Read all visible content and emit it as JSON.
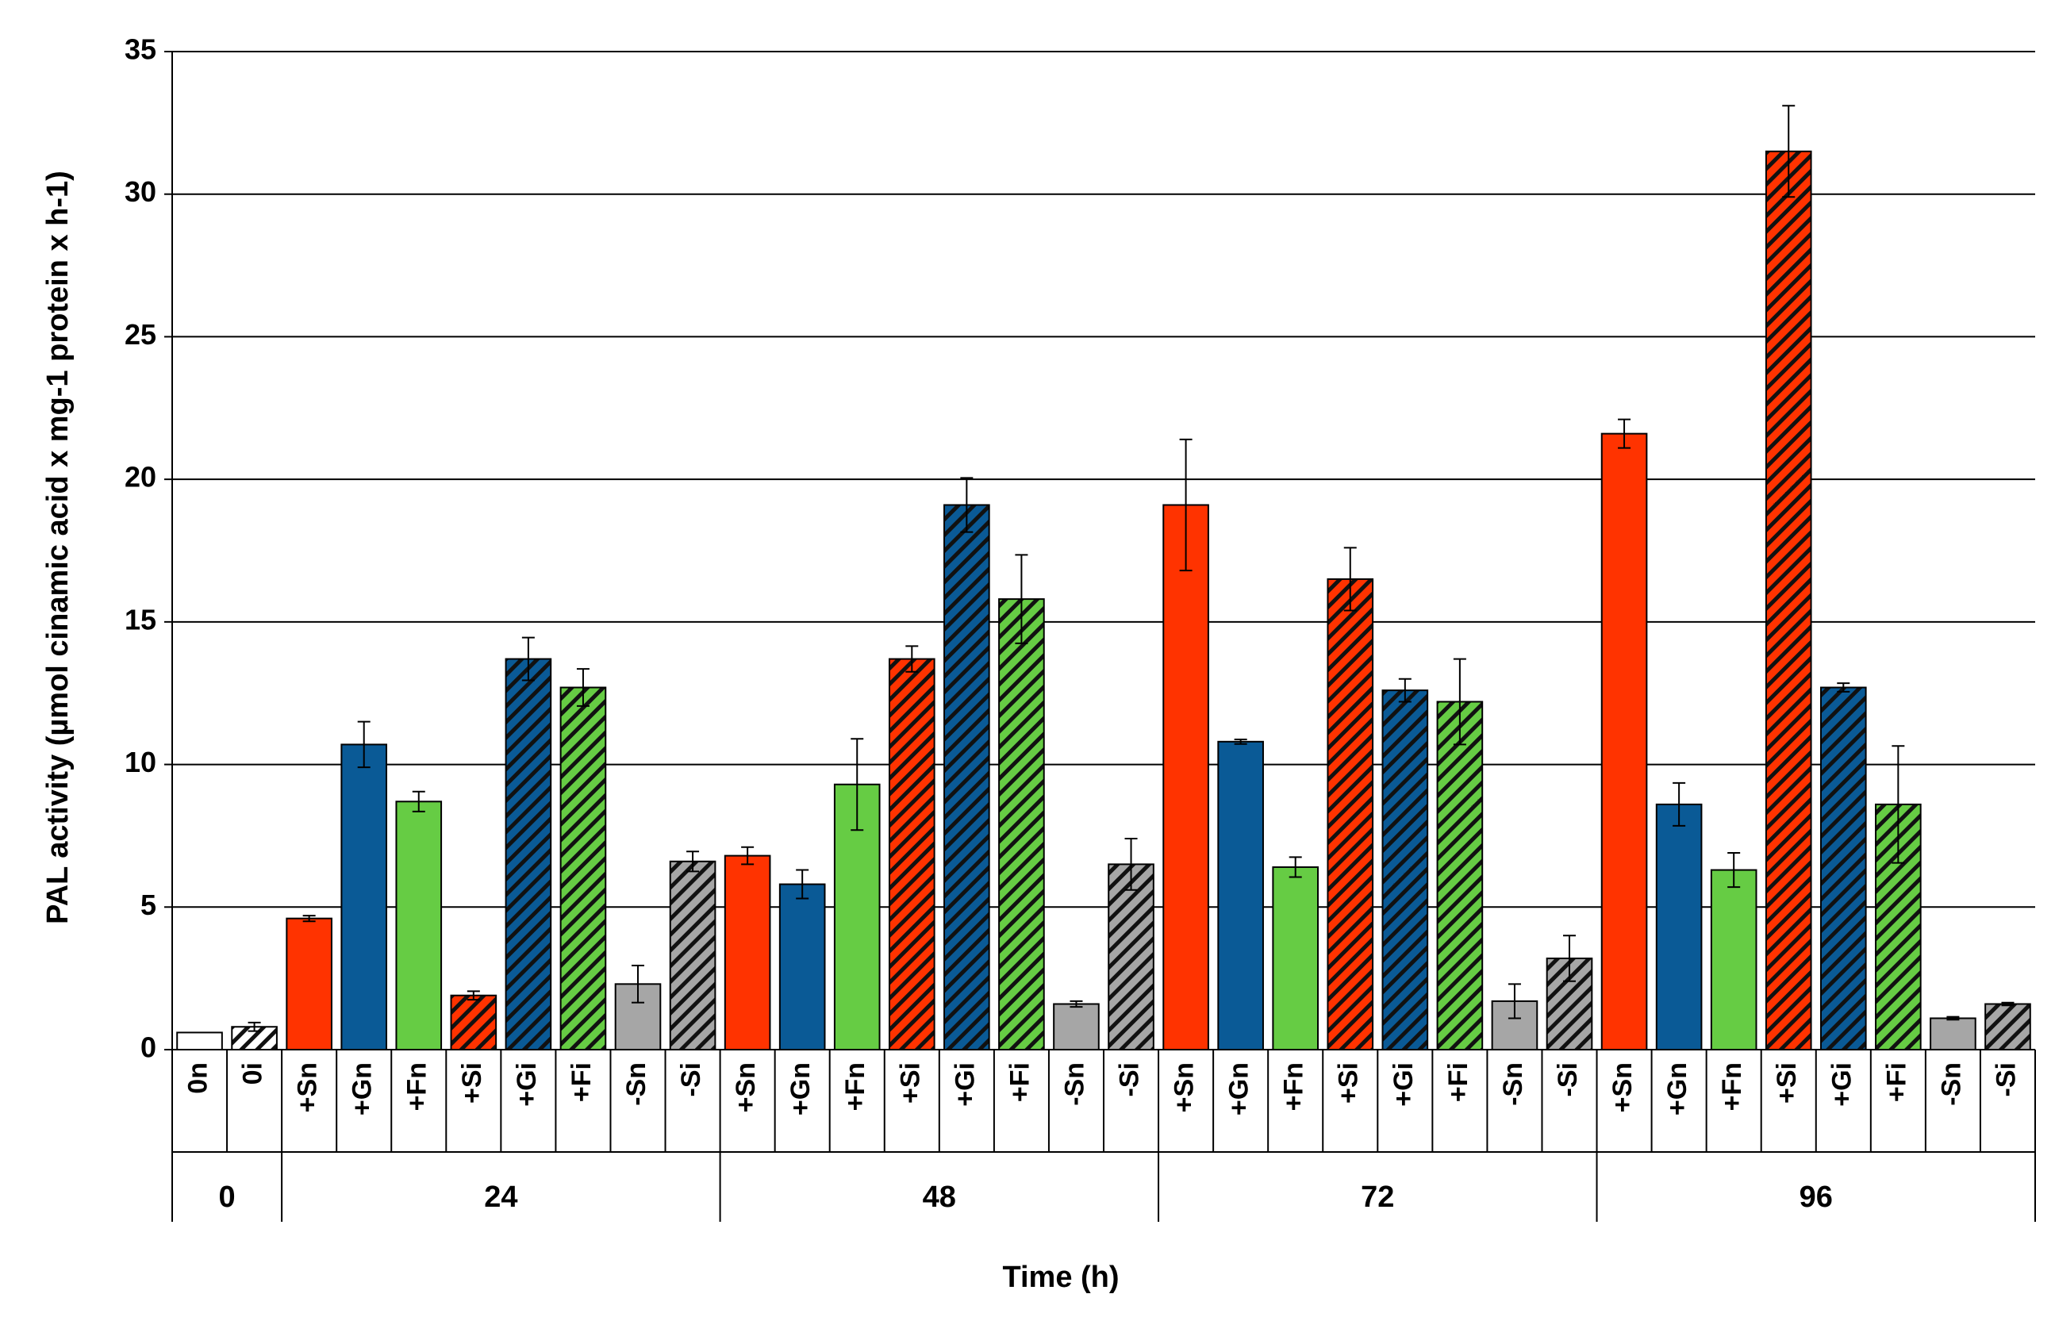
{
  "chart_data": {
    "type": "bar",
    "y_label": "PAL activity (µmol cinamic acid x mg-1 protein x h-1)",
    "x_label": "Time (h)",
    "ylim": [
      0,
      35
    ],
    "yticks": [
      0,
      5,
      10,
      15,
      20,
      25,
      30,
      35
    ],
    "grid": true,
    "groups": [
      {
        "name": "0",
        "categories": [
          "0n",
          "0i"
        ],
        "values": [
          0.6,
          0.8
        ],
        "errors": [
          0,
          0.15
        ],
        "colors": [
          "#ffffff",
          "#ffffff"
        ],
        "patterns": [
          "solid",
          "hatched"
        ]
      },
      {
        "name": "24",
        "categories": [
          "+Sn",
          "+Gn",
          "+Fn",
          "+Si",
          "+Gi",
          "+Fi",
          "-Sn",
          "-Si"
        ],
        "values": [
          4.6,
          10.7,
          8.7,
          1.9,
          13.7,
          12.7,
          2.3,
          6.6
        ],
        "errors": [
          0.1,
          0.8,
          0.35,
          0.15,
          0.75,
          0.65,
          0.65,
          0.35
        ],
        "colors": [
          "#ff3300",
          "#0a5a96",
          "#66cc44",
          "#ff3300",
          "#0a5a96",
          "#66cc44",
          "#a6a6a6",
          "#a6a6a6"
        ],
        "patterns": [
          "solid",
          "solid",
          "solid",
          "hatched",
          "hatched",
          "hatched",
          "solid",
          "hatched"
        ]
      },
      {
        "name": "48",
        "categories": [
          "+Sn",
          "+Gn",
          "+Fn",
          "+Si",
          "+Gi",
          "+Fi",
          "-Sn",
          "-Si"
        ],
        "values": [
          6.8,
          5.8,
          9.3,
          13.7,
          19.1,
          15.8,
          1.6,
          6.5
        ],
        "errors": [
          0.3,
          0.5,
          1.6,
          0.45,
          0.95,
          1.55,
          0.1,
          0.9
        ],
        "colors": [
          "#ff3300",
          "#0a5a96",
          "#66cc44",
          "#ff3300",
          "#0a5a96",
          "#66cc44",
          "#a6a6a6",
          "#a6a6a6"
        ],
        "patterns": [
          "solid",
          "solid",
          "solid",
          "hatched",
          "hatched",
          "hatched",
          "solid",
          "hatched"
        ]
      },
      {
        "name": "72",
        "categories": [
          "+Sn",
          "+Gn",
          "+Fn",
          "+Si",
          "+Gi",
          "+Fi",
          "-Sn",
          "-Si"
        ],
        "values": [
          19.1,
          10.8,
          6.4,
          16.5,
          12.6,
          12.2,
          1.7,
          3.2
        ],
        "errors": [
          2.3,
          0.08,
          0.35,
          1.1,
          0.4,
          1.5,
          0.6,
          0.8
        ],
        "colors": [
          "#ff3300",
          "#0a5a96",
          "#66cc44",
          "#ff3300",
          "#0a5a96",
          "#66cc44",
          "#a6a6a6",
          "#a6a6a6"
        ],
        "patterns": [
          "solid",
          "solid",
          "solid",
          "hatched",
          "hatched",
          "hatched",
          "solid",
          "hatched"
        ]
      },
      {
        "name": "96",
        "categories": [
          "+Sn",
          "+Gn",
          "+Fn",
          "+Si",
          "+Gi",
          "+Fi",
          "-Sn",
          "-Si"
        ],
        "values": [
          21.6,
          8.6,
          6.3,
          31.5,
          12.7,
          8.6,
          1.1,
          1.6
        ],
        "errors": [
          0.5,
          0.75,
          0.6,
          1.6,
          0.15,
          2.05,
          0.05,
          0.05
        ],
        "colors": [
          "#ff3300",
          "#0a5a96",
          "#66cc44",
          "#ff3300",
          "#0a5a96",
          "#66cc44",
          "#a6a6a6",
          "#a6a6a6"
        ],
        "patterns": [
          "solid",
          "solid",
          "solid",
          "hatched",
          "hatched",
          "hatched",
          "solid",
          "hatched"
        ]
      }
    ]
  }
}
